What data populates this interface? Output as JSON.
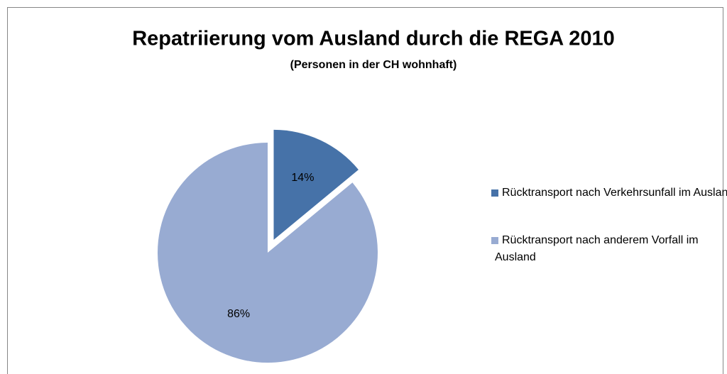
{
  "chart_data": {
    "type": "pie",
    "title": "Repatriierung vom Ausland durch die REGA 2010",
    "subtitle": "(Personen in der CH wohnhaft)",
    "categories": [
      "Rücktransport nach Verkehrsunfall im Ausland",
      "Rücktransport nach anderem Vorfall im Ausland"
    ],
    "values": [
      14,
      86
    ],
    "value_labels": [
      "14%",
      "86%"
    ],
    "colors": [
      "#4672a8",
      "#98abd2"
    ],
    "exploded": [
      0
    ],
    "legend": "right"
  }
}
